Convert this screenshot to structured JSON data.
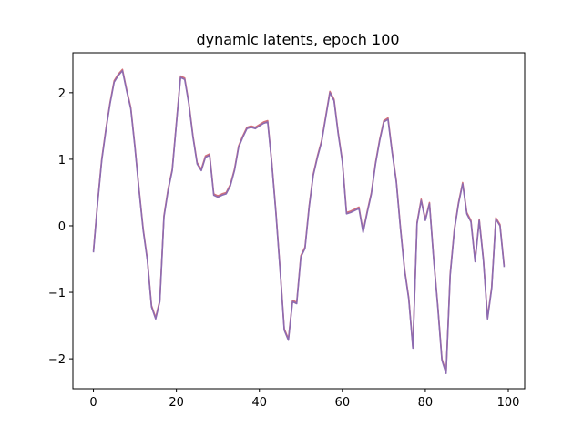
{
  "chart_data": {
    "type": "line",
    "title": "dynamic latents, epoch 100",
    "xlabel": "",
    "ylabel": "",
    "xlim": [
      -4.95,
      103.95
    ],
    "ylim": [
      -2.45,
      2.6
    ],
    "x_ticks": [
      0,
      20,
      40,
      60,
      80,
      100
    ],
    "y_ticks": [
      -2,
      -1,
      0,
      1,
      2
    ],
    "x_tick_labels": [
      "0",
      "20",
      "40",
      "60",
      "80",
      "100"
    ],
    "y_tick_labels": [
      "−2",
      "−1",
      "0",
      "1",
      "2"
    ],
    "grid": false,
    "legend": "none",
    "x": [
      0,
      1,
      2,
      3,
      4,
      5,
      6,
      7,
      8,
      9,
      10,
      11,
      12,
      13,
      14,
      15,
      16,
      17,
      18,
      19,
      20,
      21,
      22,
      23,
      24,
      25,
      26,
      27,
      28,
      29,
      30,
      31,
      32,
      33,
      34,
      35,
      36,
      37,
      38,
      39,
      40,
      41,
      42,
      43,
      44,
      45,
      46,
      47,
      48,
      49,
      50,
      51,
      52,
      53,
      54,
      55,
      56,
      57,
      58,
      59,
      60,
      61,
      62,
      63,
      64,
      65,
      66,
      67,
      68,
      69,
      70,
      71,
      72,
      73,
      74,
      75,
      76,
      77,
      78,
      79,
      80,
      81,
      82,
      83,
      84,
      85,
      86,
      87,
      88,
      89,
      90,
      91,
      92,
      93,
      94,
      95,
      96,
      97,
      98,
      99
    ],
    "series": [
      {
        "color": "#d2707a",
        "values": [
          -0.38,
          0.35,
          1.0,
          1.45,
          1.85,
          2.18,
          2.28,
          2.35,
          2.05,
          1.78,
          1.2,
          0.55,
          -0.05,
          -0.5,
          -1.2,
          -1.38,
          -1.12,
          0.15,
          0.55,
          0.85,
          1.55,
          2.25,
          2.22,
          1.85,
          1.35,
          0.95,
          0.85,
          1.05,
          1.08,
          0.48,
          0.45,
          0.48,
          0.5,
          0.62,
          0.85,
          1.2,
          1.35,
          1.48,
          1.5,
          1.48,
          1.52,
          1.56,
          1.58,
          0.95,
          0.2,
          -0.65,
          -1.55,
          -1.7,
          -1.12,
          -1.15,
          -0.45,
          -0.32,
          0.3,
          0.78,
          1.05,
          1.28,
          1.65,
          2.02,
          1.9,
          1.4,
          0.98,
          0.2,
          0.22,
          0.25,
          0.28,
          -0.08,
          0.22,
          0.5,
          0.95,
          1.3,
          1.58,
          1.62,
          1.12,
          0.68,
          -0.02,
          -0.65,
          -1.08,
          -1.82,
          0.05,
          0.4,
          0.1,
          0.35,
          -0.48,
          -1.2,
          -2.0,
          -2.2,
          -0.72,
          -0.05,
          0.35,
          0.65,
          0.2,
          0.08,
          -0.52,
          0.1,
          -0.5,
          -1.38,
          -0.92,
          0.12,
          0.02,
          -0.6
        ]
      },
      {
        "color": "#8c6bb1",
        "values": [
          -0.4,
          0.33,
          0.98,
          1.43,
          1.83,
          2.16,
          2.26,
          2.33,
          2.03,
          1.76,
          1.18,
          0.53,
          -0.07,
          -0.52,
          -1.22,
          -1.4,
          -1.14,
          0.13,
          0.53,
          0.83,
          1.53,
          2.23,
          2.2,
          1.83,
          1.33,
          0.93,
          0.83,
          1.03,
          1.06,
          0.46,
          0.43,
          0.46,
          0.48,
          0.6,
          0.83,
          1.18,
          1.33,
          1.46,
          1.48,
          1.46,
          1.5,
          1.54,
          1.56,
          0.93,
          0.18,
          -0.67,
          -1.57,
          -1.72,
          -1.14,
          -1.17,
          -0.47,
          -0.34,
          0.28,
          0.76,
          1.03,
          1.26,
          1.63,
          2.0,
          1.88,
          1.38,
          0.96,
          0.18,
          0.2,
          0.23,
          0.26,
          -0.1,
          0.2,
          0.48,
          0.93,
          1.28,
          1.56,
          1.6,
          1.1,
          0.66,
          -0.04,
          -0.67,
          -1.1,
          -1.84,
          0.03,
          0.38,
          0.08,
          0.33,
          -0.5,
          -1.22,
          -2.02,
          -2.22,
          -0.74,
          -0.07,
          0.33,
          0.63,
          0.18,
          0.06,
          -0.54,
          0.08,
          -0.52,
          -1.4,
          -0.94,
          0.1,
          0.0,
          -0.62
        ]
      }
    ]
  }
}
